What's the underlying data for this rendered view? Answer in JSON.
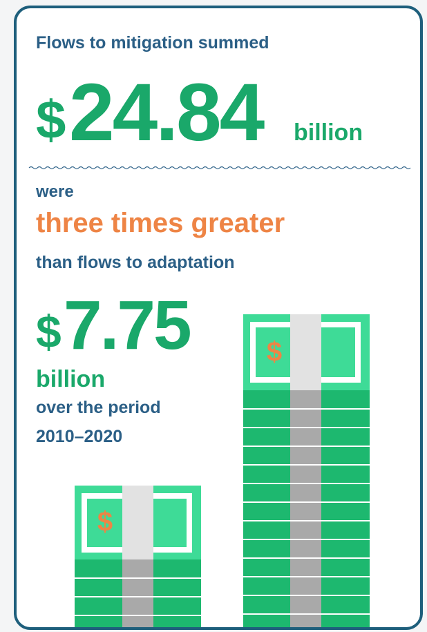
{
  "mitigation": {
    "label": "Flows to mitigation summed",
    "currency": "$",
    "amount": "24.84",
    "unit": "billion"
  },
  "comparison": {
    "lead": "were",
    "emphasis": "three times greater",
    "tail": "than flows to adaptation"
  },
  "adaptation": {
    "currency": "$",
    "amount": "7.75",
    "unit": "billion",
    "period_label": "over the period",
    "period": "2010–2020"
  }
}
